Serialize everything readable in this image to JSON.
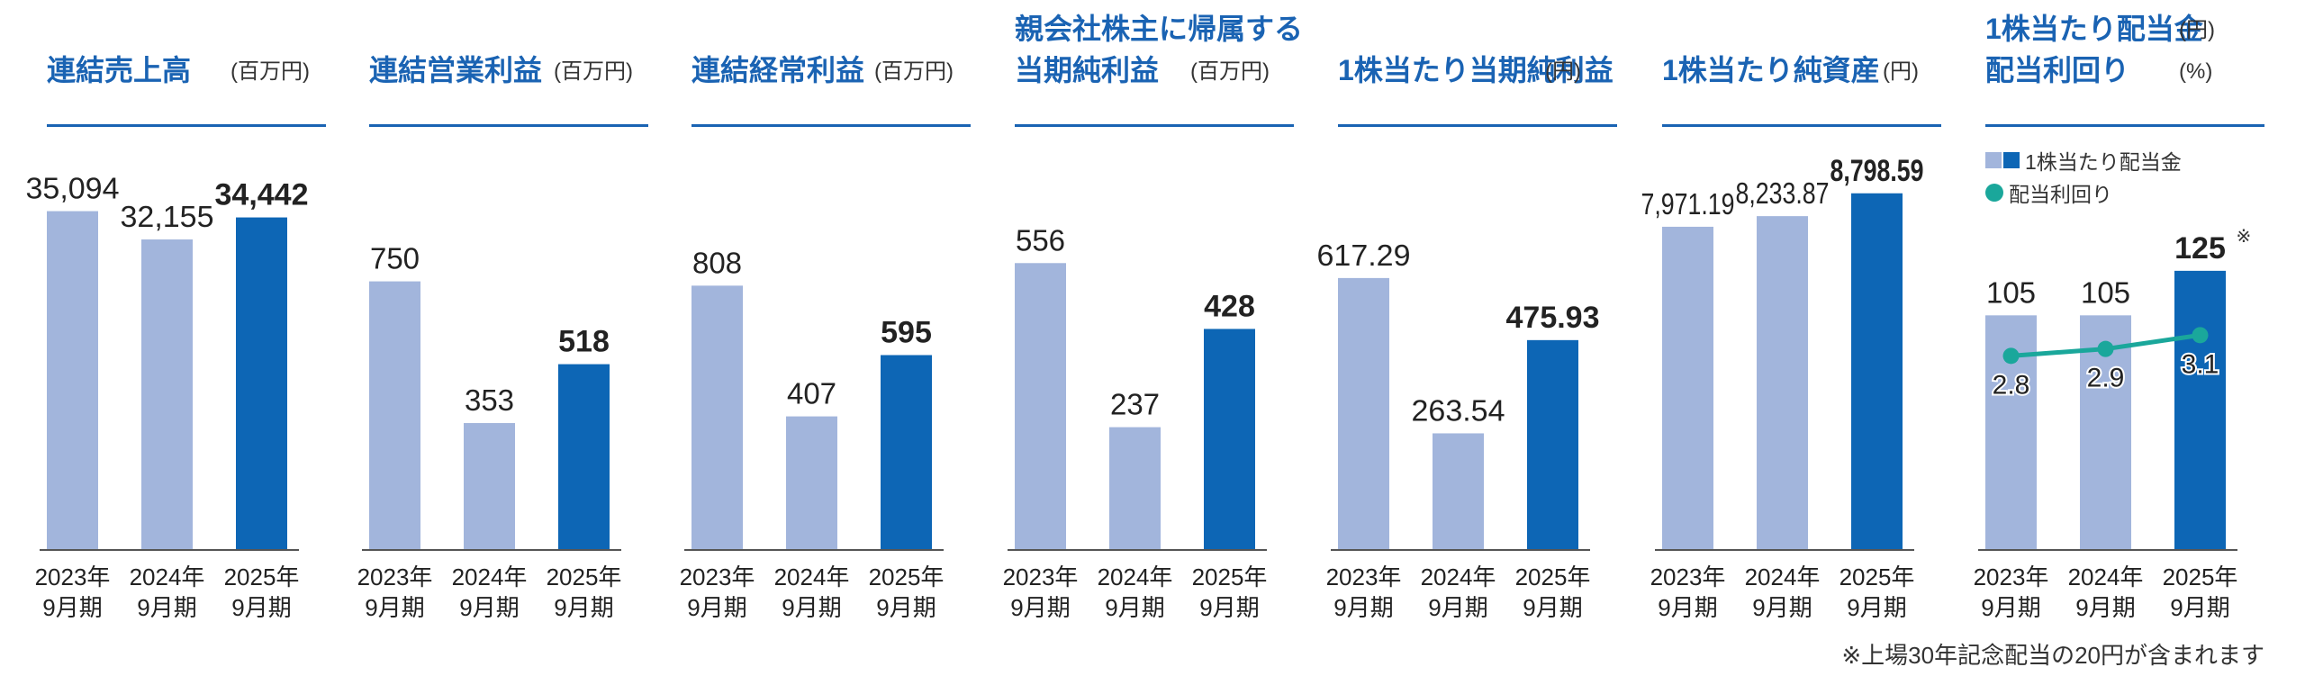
{
  "colors": {
    "title": "#1a63b3",
    "bar_past": "#a2b5dc",
    "bar_current": "#0d66b5",
    "line": "#1aa79b",
    "axis": "#555555"
  },
  "footnote": "※上場30年記念配当の20円が含まれます",
  "chart_data": [
    {
      "type": "bar",
      "title_lines": [
        "連結売上高"
      ],
      "unit_lines": [
        "(百万円)"
      ],
      "categories": [
        "2023年\n9月期",
        "2024年\n9月期",
        "2025年\n9月期"
      ],
      "values": [
        35094,
        32155,
        34442
      ],
      "labels": [
        "35,094",
        "32,155",
        "34,442"
      ],
      "highlight_index": 2,
      "ylim": [
        0,
        43000
      ]
    },
    {
      "type": "bar",
      "title_lines": [
        "連結営業利益"
      ],
      "unit_lines": [
        "(百万円)"
      ],
      "categories": [
        "2023年\n9月期",
        "2024年\n9月期",
        "2025年\n9月期"
      ],
      "values": [
        750,
        353,
        518
      ],
      "labels": [
        "750",
        "353",
        "518"
      ],
      "highlight_index": 2,
      "ylim": [
        0,
        1160
      ]
    },
    {
      "type": "bar",
      "title_lines": [
        "連結経常利益"
      ],
      "unit_lines": [
        "(百万円)"
      ],
      "categories": [
        "2023年\n9月期",
        "2024年\n9月期",
        "2025年\n9月期"
      ],
      "values": [
        808,
        407,
        595
      ],
      "labels": [
        "808",
        "407",
        "595"
      ],
      "highlight_index": 2,
      "ylim": [
        0,
        1270
      ]
    },
    {
      "type": "bar",
      "title_lines": [
        "親会社株主に帰属する",
        "当期純利益"
      ],
      "unit_lines": [
        "",
        "(百万円)"
      ],
      "categories": [
        "2023年\n9月期",
        "2024年\n9月期",
        "2025年\n9月期"
      ],
      "values": [
        556,
        237,
        428
      ],
      "labels": [
        "556",
        "237",
        "428"
      ],
      "highlight_index": 2,
      "ylim": [
        0,
        805
      ]
    },
    {
      "type": "bar",
      "title_lines": [
        "1株当たり当期純利益"
      ],
      "unit_lines": [
        "(円)"
      ],
      "categories": [
        "2023年\n9月期",
        "2024年\n9月期",
        "2025年\n9月期"
      ],
      "values": [
        617.29,
        263.54,
        475.93
      ],
      "labels": [
        "617.29",
        "263.54",
        "475.93"
      ],
      "highlight_index": 2,
      "ylim": [
        0,
        943
      ]
    },
    {
      "type": "bar",
      "title_lines": [
        "1株当たり純資産"
      ],
      "unit_lines": [
        "(円)"
      ],
      "categories": [
        "2023年\n9月期",
        "2024年\n9月期",
        "2025年\n9月期"
      ],
      "values": [
        7971.19,
        8233.87,
        8798.59
      ],
      "labels": [
        "7,971.19",
        "8,233.87",
        "8,798.59"
      ],
      "highlight_index": 2,
      "ylim": [
        0,
        10240
      ]
    },
    {
      "type": "bar+line",
      "title_lines": [
        "1株当たり配当金",
        "配当利回り"
      ],
      "unit_lines": [
        "(円)",
        "(%)"
      ],
      "categories": [
        "2023年\n9月期",
        "2024年\n9月期",
        "2025年\n9月期"
      ],
      "values": [
        105,
        105,
        125
      ],
      "labels": [
        "105",
        "105",
        "125"
      ],
      "highlight_index": 2,
      "ylim": [
        0,
        186
      ],
      "bar_note": "※",
      "line_values": [
        2.8,
        2.9,
        3.1
      ],
      "line_labels": [
        "2.8",
        "2.9",
        "3.1"
      ],
      "line_ylim": [
        0,
        6
      ],
      "legend": [
        "1株当たり配当金",
        "配当利回り"
      ]
    }
  ]
}
